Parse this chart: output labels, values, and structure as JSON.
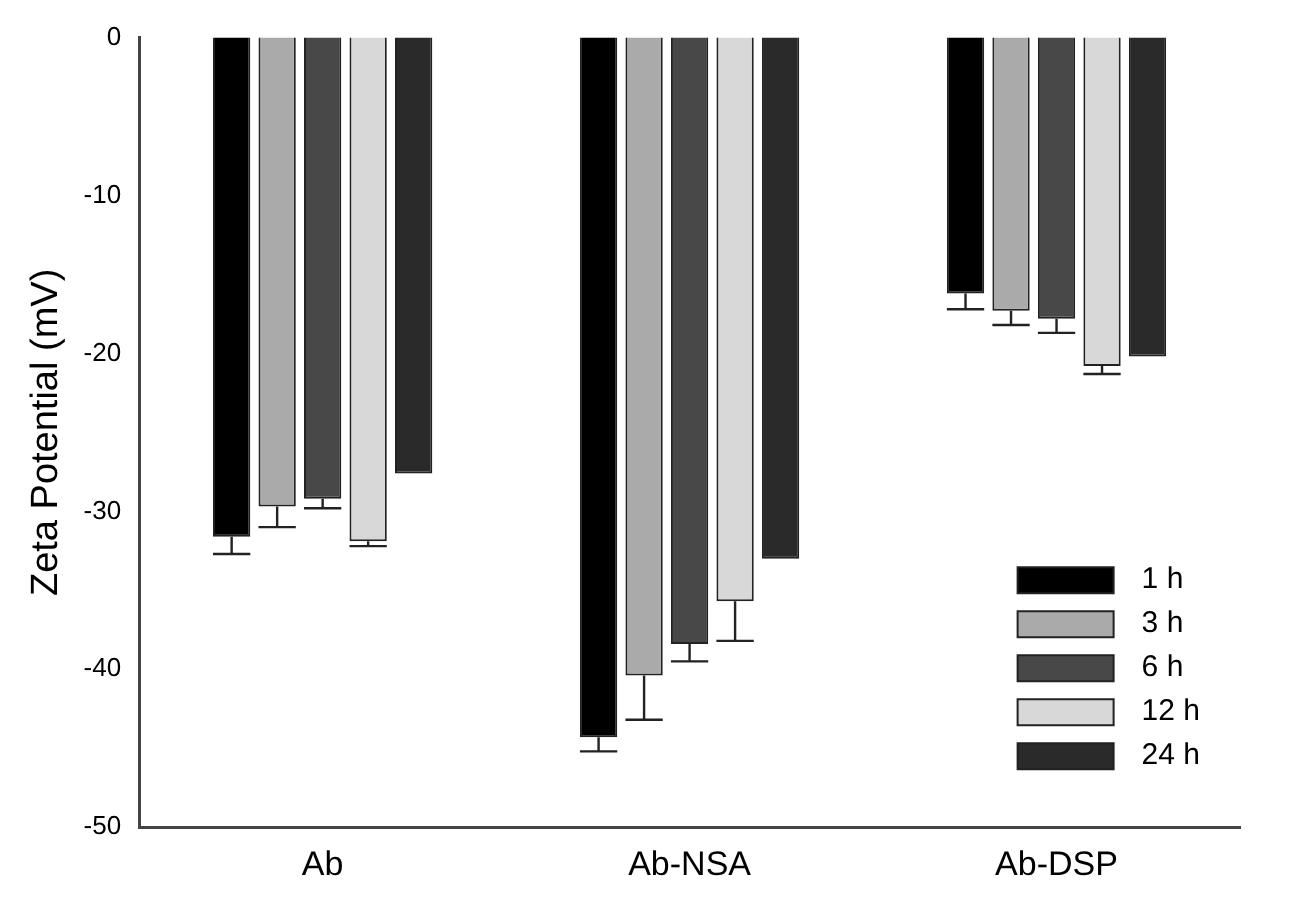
{
  "chart_data": {
    "type": "bar",
    "ylabel": "Zeta Potential (mV)",
    "categories": [
      "Ab",
      "Ab-NSA",
      "Ab-DSP"
    ],
    "series": [
      {
        "name": "1 h",
        "color": "#000000",
        "values": [
          -31.6,
          -44.3,
          -16.2
        ],
        "errors": [
          [
            -32.7,
            -31.6
          ],
          [
            -45.2,
            -44.3
          ],
          [
            -17.2,
            -16.2
          ]
        ]
      },
      {
        "name": "3 h",
        "color": "#aaaaaa",
        "values": [
          -29.7,
          -40.4,
          -17.3
        ],
        "errors": [
          [
            -31.0,
            -29.7
          ],
          [
            -43.2,
            -40.4
          ],
          [
            -18.2,
            -17.3
          ]
        ]
      },
      {
        "name": "6 h",
        "color": "#484848",
        "values": [
          -29.2,
          -38.4,
          -17.8
        ],
        "errors": [
          [
            -29.8,
            -29.2
          ],
          [
            -39.5,
            -38.4
          ],
          [
            -18.7,
            -17.8
          ]
        ]
      },
      {
        "name": "12 h",
        "color": "#d8d8d8",
        "values": [
          -31.9,
          -35.7,
          -20.8
        ],
        "errors": [
          [
            -32.2,
            -31.9
          ],
          [
            -38.2,
            -35.7
          ],
          [
            -21.3,
            -20.8
          ]
        ]
      },
      {
        "name": "24 h",
        "color": "#2a2a2a",
        "values": [
          -27.6,
          -33.0,
          -20.2
        ],
        "errors": [
          null,
          null,
          null
        ]
      }
    ],
    "ylim": [
      -50,
      0
    ],
    "yticks": [
      -50,
      -40,
      -30,
      -20,
      -10,
      0
    ],
    "grid": false,
    "legend": "bottom right"
  }
}
